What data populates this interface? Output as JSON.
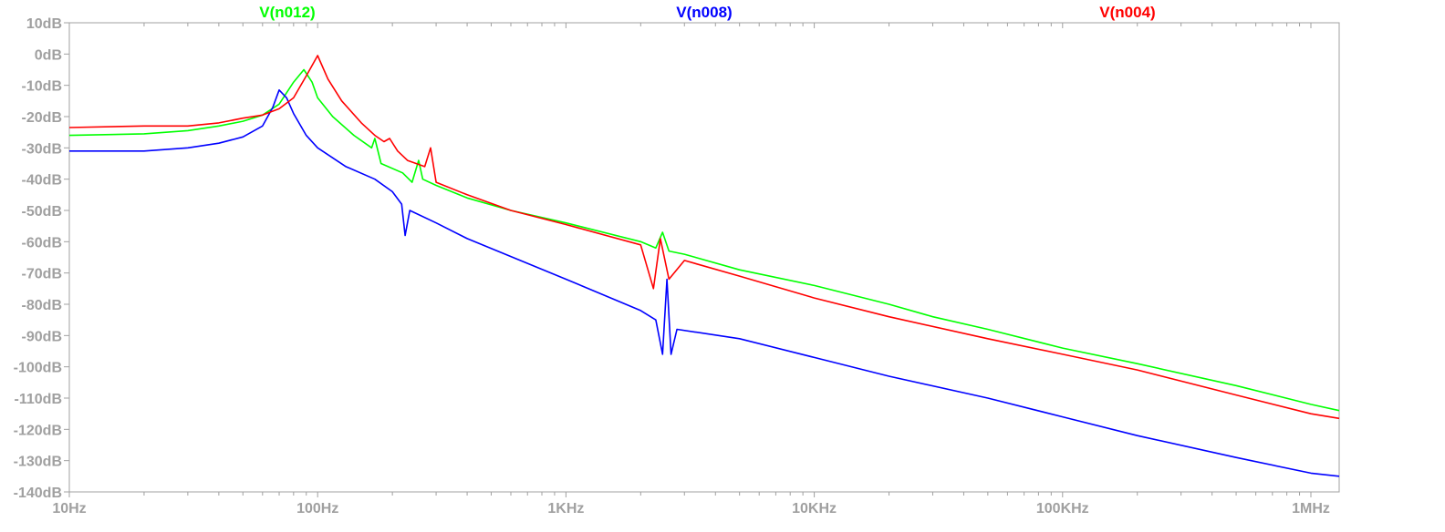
{
  "chart_data": {
    "type": "line",
    "x_scale": "log",
    "xlim": [
      "10Hz",
      "1.3MHz"
    ],
    "ylim": [
      -140,
      10
    ],
    "x_tick_labels": [
      "10Hz",
      "100Hz",
      "1KHz",
      "10KHz",
      "100KHz",
      "1MHz"
    ],
    "y_tick_labels": [
      "10dB",
      "0dB",
      "-10dB",
      "-20dB",
      "-30dB",
      "-40dB",
      "-50dB",
      "-60dB",
      "-70dB",
      "-80dB",
      "-90dB",
      "-100dB",
      "-110dB",
      "-120dB",
      "-130dB",
      "-140dB"
    ],
    "grid": false,
    "legend_placement": "top",
    "series": [
      {
        "name": "V(n012)",
        "color": "#00ff00",
        "points": [
          [
            "10Hz",
            -26
          ],
          [
            "20Hz",
            -25.5
          ],
          [
            "30Hz",
            -24.5
          ],
          [
            "40Hz",
            -23
          ],
          [
            "50Hz",
            -21.5
          ],
          [
            "60Hz",
            -19.5
          ],
          [
            "70Hz",
            -16
          ],
          [
            "80Hz",
            -9
          ],
          [
            "88Hz",
            -5
          ],
          [
            "95Hz",
            -9
          ],
          [
            "100Hz",
            -14
          ],
          [
            "115Hz",
            -20
          ],
          [
            "140Hz",
            -26
          ],
          [
            "165Hz",
            -30
          ],
          [
            "170Hz",
            -27
          ],
          [
            "180Hz",
            -35
          ],
          [
            "220Hz",
            -38
          ],
          [
            "240Hz",
            -41
          ],
          [
            "255Hz",
            -34
          ],
          [
            "265Hz",
            -40
          ],
          [
            "300Hz",
            -42
          ],
          [
            "400Hz",
            -46
          ],
          [
            "600Hz",
            -50
          ],
          [
            "1KHz",
            -54
          ],
          [
            "2KHz",
            -60
          ],
          [
            "2.3KHz",
            -62
          ],
          [
            "2.45KHz",
            -57
          ],
          [
            "2.6KHz",
            -63
          ],
          [
            "3KHz",
            -64
          ],
          [
            "5KHz",
            -69
          ],
          [
            "10KHz",
            -74
          ],
          [
            "20KHz",
            -80
          ],
          [
            "30KHz",
            -84
          ],
          [
            "50KHz",
            -88
          ],
          [
            "100KHz",
            -94
          ],
          [
            "200KHz",
            -99
          ],
          [
            "500KHz",
            -106
          ],
          [
            "1MHz",
            -112
          ],
          [
            "1.3MHz",
            -114
          ]
        ]
      },
      {
        "name": "V(n008)",
        "color": "#0000ff",
        "points": [
          [
            "10Hz",
            -31
          ],
          [
            "20Hz",
            -31
          ],
          [
            "30Hz",
            -30
          ],
          [
            "40Hz",
            -28.5
          ],
          [
            "50Hz",
            -26.5
          ],
          [
            "60Hz",
            -23
          ],
          [
            "66Hz",
            -17
          ],
          [
            "70Hz",
            -11.5
          ],
          [
            "75Hz",
            -14
          ],
          [
            "80Hz",
            -19
          ],
          [
            "90Hz",
            -26
          ],
          [
            "100Hz",
            -30
          ],
          [
            "130Hz",
            -36
          ],
          [
            "170Hz",
            -40
          ],
          [
            "200Hz",
            -44
          ],
          [
            "218Hz",
            -48
          ],
          [
            "225Hz",
            -58
          ],
          [
            "235Hz",
            -50
          ],
          [
            "300Hz",
            -54
          ],
          [
            "400Hz",
            -59
          ],
          [
            "1KHz",
            -72
          ],
          [
            "2KHz",
            -82
          ],
          [
            "2.3KHz",
            -85
          ],
          [
            "2.45KHz",
            -96
          ],
          [
            "2.55KHz",
            -72
          ],
          [
            "2.65KHz",
            -96
          ],
          [
            "2.8KHz",
            -88
          ],
          [
            "5KHz",
            -91
          ],
          [
            "10KHz",
            -97
          ],
          [
            "20KHz",
            -103
          ],
          [
            "50KHz",
            -110
          ],
          [
            "100KHz",
            -116
          ],
          [
            "200KHz",
            -122
          ],
          [
            "500KHz",
            -129
          ],
          [
            "1MHz",
            -134
          ],
          [
            "1.3MHz",
            -135
          ]
        ]
      },
      {
        "name": "V(n004)",
        "color": "#ff0000",
        "points": [
          [
            "10Hz",
            -23.5
          ],
          [
            "20Hz",
            -23
          ],
          [
            "30Hz",
            -23
          ],
          [
            "40Hz",
            -22
          ],
          [
            "50Hz",
            -20.5
          ],
          [
            "60Hz",
            -19.5
          ],
          [
            "70Hz",
            -17.5
          ],
          [
            "80Hz",
            -14
          ],
          [
            "90Hz",
            -7
          ],
          [
            "100Hz",
            -0.5
          ],
          [
            "110Hz",
            -8
          ],
          [
            "125Hz",
            -15
          ],
          [
            "150Hz",
            -22
          ],
          [
            "170Hz",
            -26
          ],
          [
            "185Hz",
            -28
          ],
          [
            "195Hz",
            -27
          ],
          [
            "210Hz",
            -31
          ],
          [
            "230Hz",
            -34
          ],
          [
            "270Hz",
            -36
          ],
          [
            "285Hz",
            -30
          ],
          [
            "300Hz",
            -41
          ],
          [
            "400Hz",
            -45
          ],
          [
            "600Hz",
            -50
          ],
          [
            "1KHz",
            -54.5
          ],
          [
            "2KHz",
            -61
          ],
          [
            "2.25KHz",
            -75
          ],
          [
            "2.4KHz",
            -59
          ],
          [
            "2.6KHz",
            -72
          ],
          [
            "3KHz",
            -66
          ],
          [
            "5KHz",
            -71
          ],
          [
            "10KHz",
            -78
          ],
          [
            "20KHz",
            -84
          ],
          [
            "50KHz",
            -91
          ],
          [
            "100KHz",
            -96
          ],
          [
            "200KHz",
            -101
          ],
          [
            "500KHz",
            -109
          ],
          [
            "1MHz",
            -115
          ],
          [
            "1.3MHz",
            -116.5
          ]
        ]
      }
    ]
  }
}
